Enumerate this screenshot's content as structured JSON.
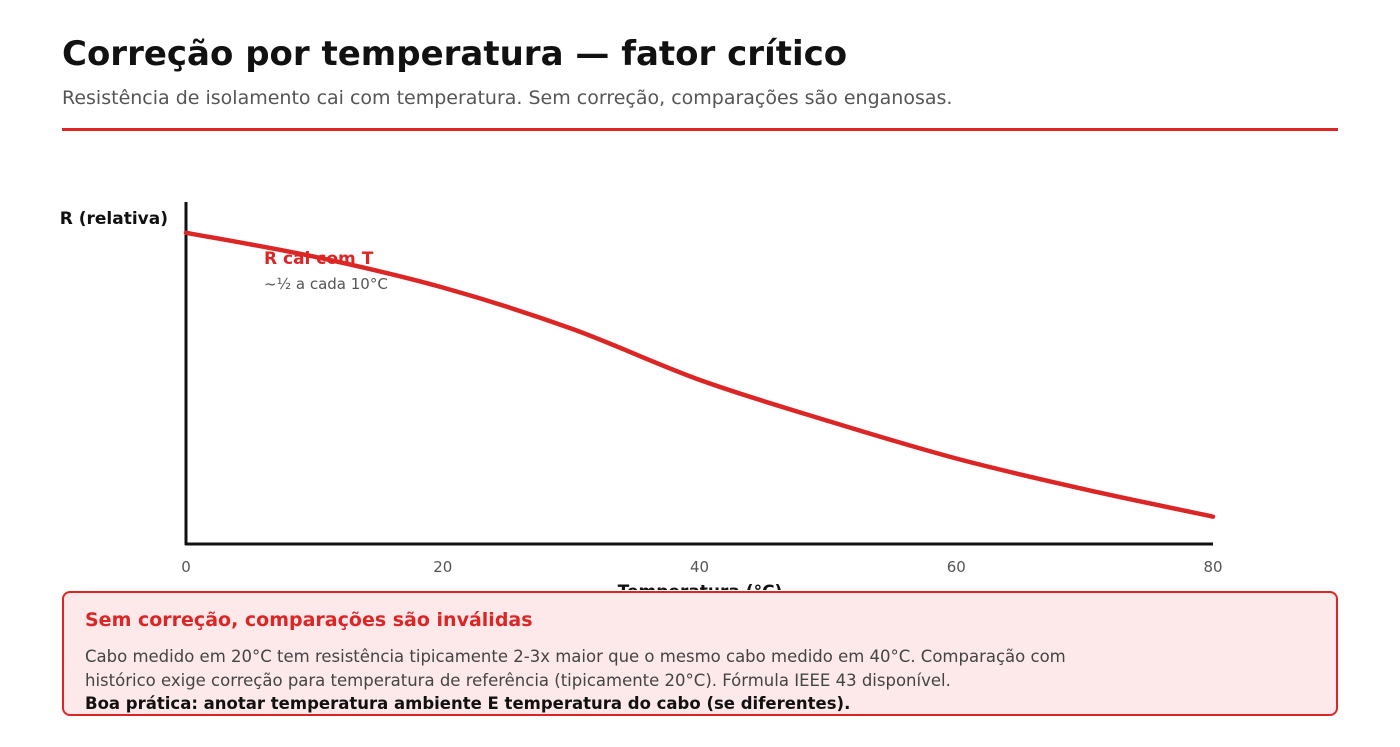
{
  "header": {
    "title": "Correção por temperatura — fator crítico",
    "subtitle": "Resistência de isolamento cai com temperatura. Sem correção, comparações são enganosas."
  },
  "colors": {
    "accent": "#dc2626",
    "text": "#111111",
    "muted": "#555555",
    "callout_bg": "#fde8ea"
  },
  "chart_data": {
    "type": "line",
    "title": "",
    "xlabel": "Temperatura (°C)",
    "ylabel": "R (relativa)",
    "xlim": [
      0,
      80
    ],
    "ylim": [
      0,
      1
    ],
    "x_ticks": [
      "0",
      "20",
      "40",
      "60",
      "80"
    ],
    "grid": false,
    "series": [
      {
        "name": "R cai com T",
        "color": "#dc2626",
        "x": [
          0,
          10,
          20,
          30,
          40,
          50,
          60,
          70,
          80
        ],
        "y": [
          0.91,
          0.84,
          0.75,
          0.63,
          0.48,
          0.36,
          0.25,
          0.16,
          0.08
        ]
      }
    ],
    "annotations": [
      {
        "text": "R cai com T",
        "style": "emphasis"
      },
      {
        "text": "~½ a cada 10°C",
        "style": "note"
      }
    ]
  },
  "callout": {
    "title": "Sem correção, comparações são inválidas",
    "body": "Cabo medido em 20°C tem resistência tipicamente 2-3x maior que o mesmo cabo medido em 40°C. Comparação com histórico exige correção para temperatura de referência (tipicamente 20°C). Fórmula IEEE 43 disponível.",
    "emphasis": "Boa prática: anotar temperatura ambiente E temperatura do cabo (se diferentes)."
  }
}
